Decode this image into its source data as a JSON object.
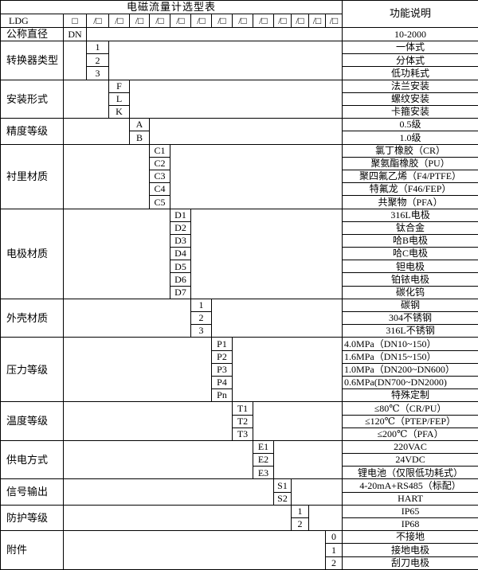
{
  "table": {
    "title": "电磁流量计选型表",
    "right_header": "功能说明",
    "model_row": {
      "prefix": "LDG",
      "first_box": "□",
      "box_cells": [
        "/□",
        "/□",
        "/□",
        "/□",
        "/□",
        "/□",
        "/□",
        "/□",
        "/□",
        "/□",
        "/□",
        "/□",
        "/□"
      ]
    },
    "sections": [
      {
        "label": "公称直径",
        "col": 1,
        "rows": [
          {
            "code": "DN",
            "desc": "10-2000"
          }
        ]
      },
      {
        "label": "转换器类型",
        "col": 2,
        "rows": [
          {
            "code": "1",
            "desc": "一体式"
          },
          {
            "code": "2",
            "desc": "分体式"
          },
          {
            "code": "3",
            "desc": "低功耗式"
          }
        ]
      },
      {
        "label": "安装形式",
        "col": 3,
        "rows": [
          {
            "code": "F",
            "desc": "法兰安装"
          },
          {
            "code": "L",
            "desc": "螺纹安装"
          },
          {
            "code": "K",
            "desc": "卡箍安装"
          }
        ]
      },
      {
        "label": "精度等级",
        "col": 4,
        "rows": [
          {
            "code": "A",
            "desc": "0.5级"
          },
          {
            "code": "B",
            "desc": "1.0级"
          }
        ]
      },
      {
        "label": "衬里材质",
        "col": 5,
        "rows": [
          {
            "code": "C1",
            "desc": "氯丁橡胶（CR）"
          },
          {
            "code": "C2",
            "desc": "聚氨酯橡胶（PU）"
          },
          {
            "code": "C3",
            "desc": "聚四氟乙烯（F4/PTFE）"
          },
          {
            "code": "C4",
            "desc": "特氟龙（F46/FEP）"
          },
          {
            "code": "C5",
            "desc": "共聚物（PFA）"
          }
        ]
      },
      {
        "label": "电极材质",
        "col": 6,
        "rows": [
          {
            "code": "D1",
            "desc": "316L电极"
          },
          {
            "code": "D2",
            "desc": "钛合金"
          },
          {
            "code": "D3",
            "desc": "哈B电极"
          },
          {
            "code": "D4",
            "desc": "哈C电极"
          },
          {
            "code": "D5",
            "desc": "钽电极"
          },
          {
            "code": "D6",
            "desc": "铂铱电极"
          },
          {
            "code": "D7",
            "desc": "碳化钨"
          }
        ]
      },
      {
        "label": "外壳材质",
        "col": 7,
        "rows": [
          {
            "code": "1",
            "desc": "碳钢"
          },
          {
            "code": "2",
            "desc": "304不锈钢"
          },
          {
            "code": "3",
            "desc": "316L不锈钢"
          }
        ]
      },
      {
        "label": "压力等级",
        "col": 8,
        "rows": [
          {
            "code": "P1",
            "desc": "4.0MPa（DN10~150）",
            "align": "left"
          },
          {
            "code": "P2",
            "desc": "1.6MPa（DN15~150）",
            "align": "left"
          },
          {
            "code": "P3",
            "desc": "1.0MPa（DN200~DN600）",
            "align": "left"
          },
          {
            "code": "P4",
            "desc": "0.6MPa(DN700~DN2000)",
            "align": "left"
          },
          {
            "code": "Pn",
            "desc": "特殊定制"
          }
        ]
      },
      {
        "label": "温度等级",
        "col": 9,
        "rows": [
          {
            "code": "T1",
            "desc": "≤80℃（CR/PU）"
          },
          {
            "code": "T2",
            "desc": "≤120℃（PTEP/FEP）"
          },
          {
            "code": "T3",
            "desc": "≤200℃（PFA）"
          }
        ]
      },
      {
        "label": "供电方式",
        "col": 10,
        "rows": [
          {
            "code": "E1",
            "desc": "220VAC"
          },
          {
            "code": "E2",
            "desc": "24VDC"
          },
          {
            "code": "E3",
            "desc": "锂电池（仅限低功耗式）"
          }
        ]
      },
      {
        "label": "信号输出",
        "col": 11,
        "rows": [
          {
            "code": "S1",
            "desc": "4-20mA+RS485（标配）"
          },
          {
            "code": "S2",
            "desc": "HART"
          }
        ]
      },
      {
        "label": "防护等级",
        "col": 12,
        "rows": [
          {
            "code": "1",
            "desc": "IP65"
          },
          {
            "code": "2",
            "desc": "IP68"
          }
        ]
      },
      {
        "label": "附件",
        "col": 14,
        "rows": [
          {
            "code": "0",
            "desc": "不接地"
          },
          {
            "code": "1",
            "desc": "接地电极"
          },
          {
            "code": "2",
            "desc": "刮刀电极"
          }
        ]
      }
    ],
    "colors": {
      "border": "#000000",
      "background": "#ffffff",
      "text": "#000000"
    }
  }
}
